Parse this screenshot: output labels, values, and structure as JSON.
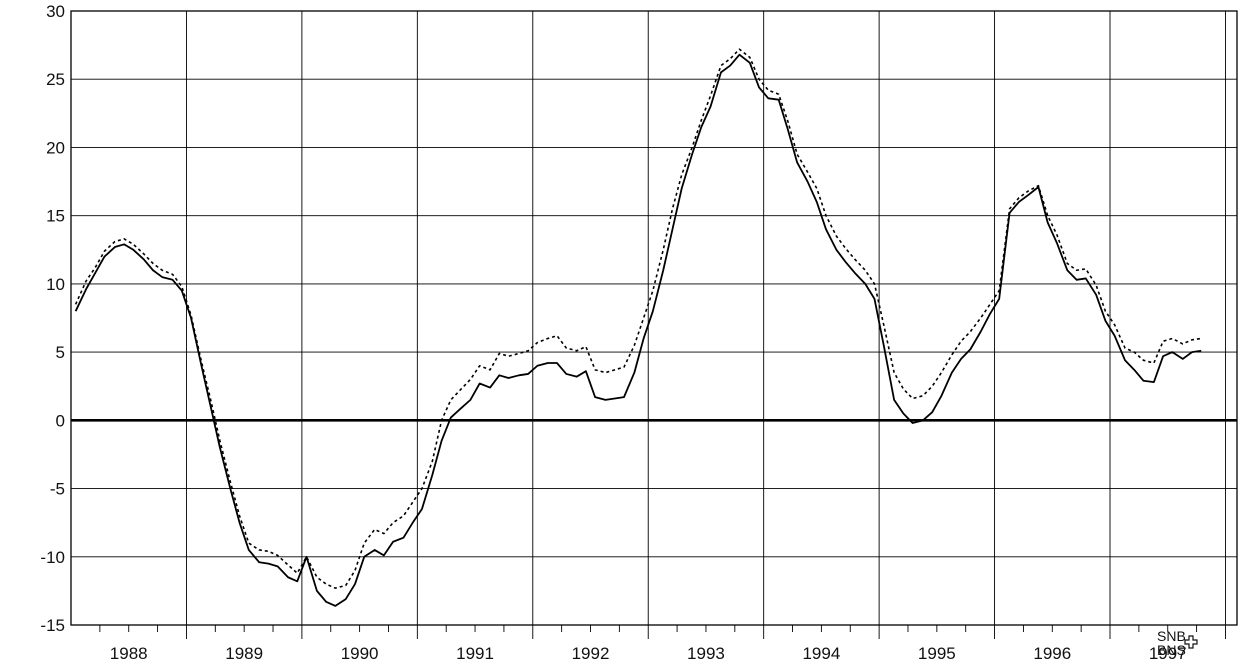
{
  "chart_data": {
    "type": "line",
    "title": "",
    "xlabel": "",
    "ylabel": "",
    "ylim": [
      -15,
      30
    ],
    "xlim": [
      1987.5,
      1997.6
    ],
    "grid": true,
    "yticks": [
      "30",
      "25",
      "20",
      "15",
      "10",
      "5",
      "0",
      "-5",
      "-10",
      "-15"
    ],
    "year_labels": [
      "1988",
      "1989",
      "1990",
      "1991",
      "1992",
      "1993",
      "1994",
      "1995",
      "1996",
      "1997"
    ],
    "logo": {
      "line1": "SNB",
      "line2": "BNS"
    },
    "series": [
      {
        "style": "solid",
        "x": [
          1987.54,
          1987.63,
          1987.71,
          1987.79,
          1987.88,
          1987.96,
          1988.04,
          1988.13,
          1988.21,
          1988.29,
          1988.38,
          1988.46,
          1988.54,
          1988.63,
          1988.71,
          1988.79,
          1988.88,
          1988.96,
          1989.04,
          1989.13,
          1989.21,
          1989.29,
          1989.38,
          1989.46,
          1989.54,
          1989.63,
          1989.71,
          1989.79,
          1989.88,
          1989.96,
          1990.04,
          1990.13,
          1990.21,
          1990.29,
          1990.38,
          1990.46,
          1990.54,
          1990.63,
          1990.71,
          1990.79,
          1990.88,
          1990.96,
          1991.04,
          1991.13,
          1991.21,
          1991.29,
          1991.38,
          1991.46,
          1991.54,
          1991.63,
          1991.71,
          1991.79,
          1991.88,
          1991.96,
          1992.04,
          1992.13,
          1992.21,
          1992.29,
          1992.38,
          1992.46,
          1992.54,
          1992.63,
          1992.71,
          1992.79,
          1992.88,
          1992.96,
          1993.04,
          1993.13,
          1993.21,
          1993.29,
          1993.38,
          1993.46,
          1993.54,
          1993.63,
          1993.71,
          1993.79,
          1993.88,
          1993.96,
          1994.04,
          1994.13,
          1994.21,
          1994.29,
          1994.38,
          1994.46,
          1994.54,
          1994.63,
          1994.71,
          1994.79,
          1994.88,
          1994.96,
          1995.04,
          1995.13,
          1995.21,
          1995.29,
          1995.38,
          1995.46,
          1995.54,
          1995.63,
          1995.71,
          1995.79,
          1995.88,
          1995.96,
          1996.04,
          1996.13,
          1996.21,
          1996.29,
          1996.38,
          1996.46,
          1996.54,
          1996.63,
          1996.71,
          1996.79,
          1996.88,
          1996.96,
          1997.04,
          1997.13,
          1997.21,
          1997.29
        ],
        "values": [
          8.0,
          9.6,
          10.8,
          12.0,
          12.7,
          12.9,
          12.5,
          11.8,
          11.0,
          10.5,
          10.3,
          9.5,
          7.5,
          4.0,
          1.0,
          -2.0,
          -5.0,
          -7.5,
          -9.5,
          -10.4,
          -10.5,
          -10.7,
          -11.5,
          -11.8,
          -10.0,
          -12.5,
          -13.3,
          -13.6,
          -13.1,
          -12.0,
          -10.0,
          -9.5,
          -9.9,
          -8.9,
          -8.6,
          -7.5,
          -6.5,
          -4.0,
          -1.5,
          0.2,
          0.9,
          1.5,
          2.7,
          2.4,
          3.3,
          3.1,
          3.3,
          3.4,
          4.0,
          4.2,
          4.2,
          3.4,
          3.2,
          3.6,
          1.7,
          1.5,
          1.6,
          1.7,
          3.5,
          6.0,
          8.0,
          11.0,
          14.0,
          17.0,
          19.5,
          21.5,
          23.0,
          25.5,
          26.0,
          26.8,
          26.2,
          24.4,
          23.6,
          23.5,
          21.3,
          18.9,
          17.5,
          16.0,
          14.0,
          12.5,
          11.6,
          10.8,
          10.0,
          8.9,
          5.5,
          1.5,
          0.5,
          -0.2,
          0.0,
          0.6,
          1.8,
          3.5,
          4.5,
          5.2,
          6.5,
          7.8,
          8.9,
          15.2,
          16.0,
          16.5,
          17.1,
          14.5,
          13.0,
          11.0,
          10.3,
          10.4,
          9.2,
          7.3,
          6.2,
          4.4,
          3.7,
          2.9,
          2.8,
          4.7,
          5.0,
          4.5,
          5.0,
          5.1
        ]
      },
      {
        "style": "dotted",
        "x": [
          1987.54,
          1987.63,
          1987.71,
          1987.79,
          1987.88,
          1987.96,
          1988.04,
          1988.13,
          1988.21,
          1988.29,
          1988.38,
          1988.46,
          1988.54,
          1988.63,
          1988.71,
          1988.79,
          1988.88,
          1988.96,
          1989.04,
          1989.13,
          1989.21,
          1989.29,
          1989.38,
          1989.46,
          1989.54,
          1989.63,
          1989.71,
          1989.79,
          1989.88,
          1989.96,
          1990.04,
          1990.13,
          1990.21,
          1990.29,
          1990.38,
          1990.46,
          1990.54,
          1990.63,
          1990.71,
          1990.79,
          1990.88,
          1990.96,
          1991.04,
          1991.13,
          1991.21,
          1991.29,
          1991.38,
          1991.46,
          1991.54,
          1991.63,
          1991.71,
          1991.79,
          1991.88,
          1991.96,
          1992.04,
          1992.13,
          1992.21,
          1992.29,
          1992.38,
          1992.46,
          1992.54,
          1992.63,
          1992.71,
          1992.79,
          1992.88,
          1992.96,
          1993.04,
          1993.13,
          1993.21,
          1993.29,
          1993.38,
          1993.46,
          1993.54,
          1993.63,
          1993.71,
          1993.79,
          1993.88,
          1993.96,
          1994.04,
          1994.13,
          1994.21,
          1994.29,
          1994.38,
          1994.46,
          1994.54,
          1994.63,
          1994.71,
          1994.79,
          1994.88,
          1994.96,
          1995.04,
          1995.13,
          1995.21,
          1995.29,
          1995.38,
          1995.46,
          1995.54,
          1995.63,
          1995.71,
          1995.79,
          1995.88,
          1995.96,
          1996.04,
          1996.13,
          1996.21,
          1996.29,
          1996.38,
          1996.46,
          1996.54,
          1996.63,
          1996.71,
          1996.79,
          1996.88,
          1996.96,
          1997.04,
          1997.13,
          1997.21,
          1997.29
        ],
        "values": [
          8.5,
          10.2,
          11.2,
          12.4,
          13.1,
          13.3,
          12.9,
          12.2,
          11.5,
          11.0,
          10.7,
          9.8,
          7.7,
          4.3,
          1.5,
          -1.5,
          -4.5,
          -7.0,
          -9.0,
          -9.5,
          -9.6,
          -9.9,
          -10.6,
          -11.2,
          -10.0,
          -11.5,
          -12.0,
          -12.3,
          -12.1,
          -11.0,
          -9.0,
          -8.0,
          -8.3,
          -7.5,
          -7.0,
          -6.0,
          -5.0,
          -3.0,
          0.0,
          1.5,
          2.3,
          3.0,
          4.0,
          3.7,
          4.9,
          4.7,
          4.9,
          5.1,
          5.7,
          6.0,
          6.2,
          5.3,
          5.1,
          5.4,
          3.7,
          3.5,
          3.7,
          3.9,
          5.5,
          7.5,
          9.5,
          12.5,
          15.5,
          18.0,
          20.0,
          22.0,
          23.8,
          26.0,
          26.5,
          27.2,
          26.6,
          25.0,
          24.2,
          23.9,
          21.9,
          19.5,
          18.2,
          17.0,
          15.0,
          13.5,
          12.6,
          11.8,
          11.0,
          10.0,
          7.0,
          3.5,
          2.3,
          1.6,
          1.8,
          2.5,
          3.5,
          4.8,
          5.8,
          6.5,
          7.5,
          8.5,
          9.5,
          15.5,
          16.3,
          16.8,
          17.2,
          15.0,
          13.6,
          11.5,
          11.0,
          11.1,
          9.9,
          8.0,
          7.0,
          5.3,
          5.0,
          4.4,
          4.2,
          5.8,
          6.0,
          5.6,
          5.9,
          6.0
        ]
      }
    ]
  }
}
